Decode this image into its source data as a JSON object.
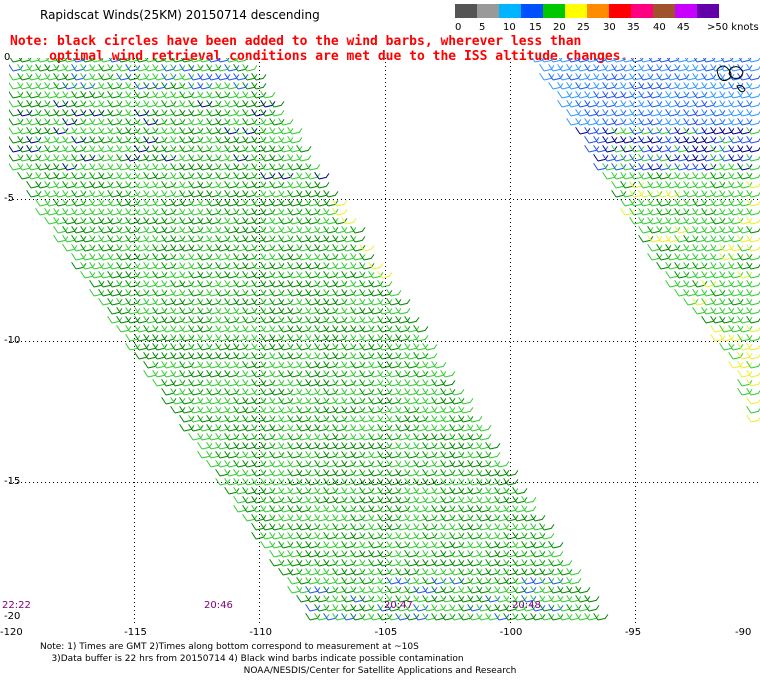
{
  "title": "Rapidscat Winds(25KM) 20150714 descending",
  "note": {
    "line1": "Note: black circles have been added to the wind barbs, wherever less than",
    "line2": "optimal wind retrieval conditions are met due to the ISS altitude changes."
  },
  "legend": {
    "unit": ">50 knots",
    "labels": [
      "0",
      "5",
      "10",
      "15",
      "20",
      "25",
      "30",
      "35",
      "40",
      "45"
    ],
    "colors": [
      "#555555",
      "#999999",
      "#00b4ff",
      "#0050ff",
      "#00c800",
      "#ffff00",
      "#ff8c00",
      "#ff0000",
      "#ff0080",
      "#a0522d",
      "#c800ff",
      "#6400aa"
    ]
  },
  "map": {
    "lon_range": [
      -120,
      -90
    ],
    "lat_range": [
      -20,
      0
    ],
    "lon_ticks": [
      "-120",
      "-115",
      "-110",
      "-105",
      "-100",
      "-95",
      "-90"
    ],
    "lat_ticks": [
      "0",
      "-5",
      "-10",
      "-15",
      "-20"
    ],
    "colors": {
      "light_green": "#33cc33",
      "dark_green": "#008800",
      "yellow": "#eeee33",
      "blue": "#2255ee",
      "light_blue": "#3399ff",
      "navy": "#000088"
    }
  },
  "times": [
    "22:22",
    "20:46",
    "20:47",
    "20:48"
  ],
  "footnote": {
    "line1": "Note: 1) Times are GMT 2)Times along bottom correspond to measurement at ~10S",
    "line2": "3)Data buffer is 22 hrs from 20150714 4) Black wind barbs indicate possible contamination"
  },
  "credit": "NOAA/NESDIS/Center for Satellite Applications and Research"
}
